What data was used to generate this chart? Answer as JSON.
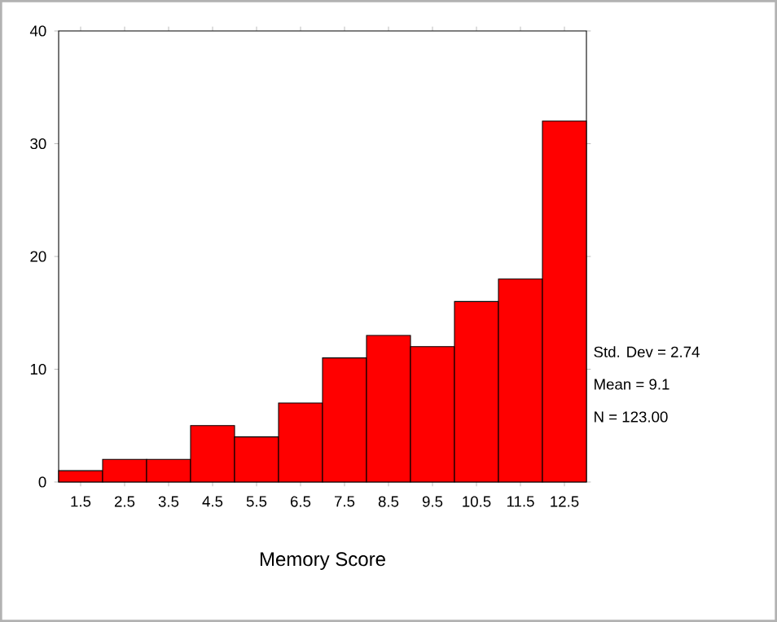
{
  "chart_data": {
    "type": "histogram",
    "xlabel": "Memory Score",
    "bins": [
      1,
      2,
      3,
      4,
      5,
      6,
      7,
      8,
      9,
      10,
      11,
      12,
      13
    ],
    "values": [
      1,
      2,
      2,
      5,
      4,
      7,
      11,
      13,
      12,
      16,
      18,
      32
    ],
    "color": "#ff0000",
    "xlim": [
      1,
      13
    ],
    "xticks": [
      1.5,
      2.5,
      3.5,
      4.5,
      5.5,
      6.5,
      7.5,
      8.5,
      9.5,
      10.5,
      11.5,
      12.5
    ],
    "ylim": [
      0,
      40
    ],
    "yticks": [
      0,
      10,
      20,
      30,
      40
    ],
    "grid": false,
    "annotations": [
      "Std. Dev = 2.74",
      "Mean = 9.1",
      "N = 123.00"
    ]
  }
}
